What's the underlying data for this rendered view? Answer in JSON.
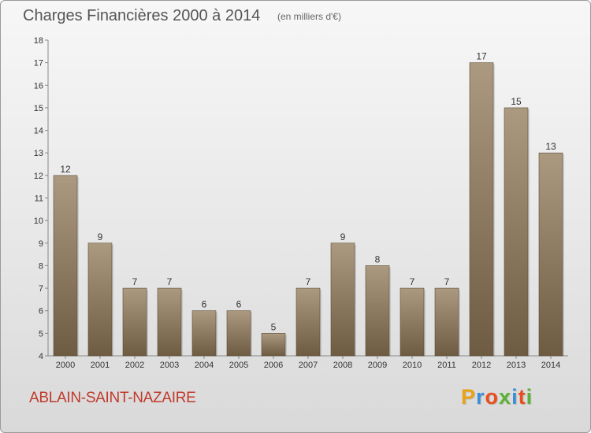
{
  "header": {
    "title": "Charges Financières 2000 à 2014",
    "subtitle": "(en milliers d'€)"
  },
  "footer": {
    "town": "ABLAIN-SAINT-NAZAIRE",
    "logo": "Proxiti",
    "logo_colors": [
      "#e8a317",
      "#3c8fd6",
      "#e94e1b",
      "#5bb236",
      "#3c8fd6",
      "#e94e1b",
      "#5bb236"
    ]
  },
  "colors": {
    "bar_light": "#ab9a80",
    "bar_dark": "#6e5c42",
    "axis": "#888888",
    "grid": "#cccccc",
    "town": "#c0392b"
  },
  "chart_data": {
    "type": "bar",
    "title": "Charges Financières 2000 à 2014",
    "subtitle": "(en milliers d'€)",
    "categories": [
      "2000",
      "2001",
      "2002",
      "2003",
      "2004",
      "2005",
      "2006",
      "2007",
      "2008",
      "2009",
      "2010",
      "2011",
      "2012",
      "2013",
      "2014"
    ],
    "values": [
      12,
      9,
      7,
      7,
      6,
      6,
      5,
      7,
      9,
      8,
      7,
      7,
      17,
      15,
      13
    ],
    "ylim": [
      4,
      18
    ],
    "yticks": [
      4,
      5,
      6,
      7,
      8,
      9,
      10,
      11,
      12,
      13,
      14,
      15,
      16,
      17,
      18
    ],
    "xlabel": "",
    "ylabel": "",
    "grid": false,
    "data_labels": true
  }
}
